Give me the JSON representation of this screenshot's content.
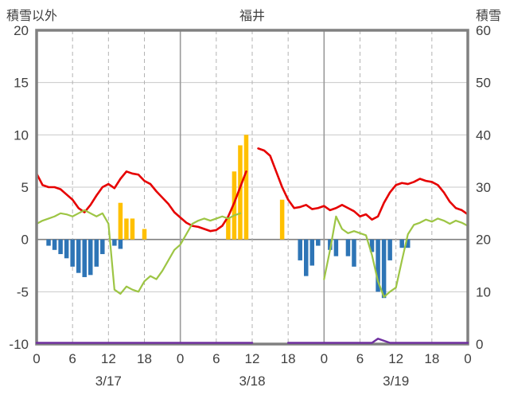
{
  "chart_data": {
    "type": "bar",
    "title": "福井",
    "left_axis": {
      "label": "積雪以外",
      "min": -10,
      "max": 20,
      "ticks": [
        20,
        15,
        10,
        5,
        0,
        -5,
        -10
      ]
    },
    "right_axis": {
      "label": "積雪",
      "min": 0,
      "max": 60,
      "ticks": [
        60,
        50,
        40,
        30,
        20,
        10,
        0
      ]
    },
    "x_axis": {
      "hours_total": 72,
      "tick_interval": 6,
      "tick_labels": [
        "0",
        "6",
        "12",
        "18",
        "0",
        "6",
        "12",
        "18",
        "0",
        "6",
        "12",
        "18",
        "0"
      ],
      "day_labels": [
        {
          "label": "3/17",
          "hour": 12
        },
        {
          "label": "3/18",
          "hour": 36
        },
        {
          "label": "3/19",
          "hour": 60
        }
      ]
    },
    "style": {
      "frame": "#808080",
      "gridline": "#c9c9c9",
      "dashed_line": "#b3b3b3",
      "day_line": "#999999",
      "zero_line": "#808080",
      "text": "#404040",
      "background": "#ffffff"
    },
    "series": [
      {
        "name": "orange-bars",
        "type": "bar",
        "axis": "left",
        "color": "#ffc000",
        "values": [
          null,
          null,
          null,
          null,
          null,
          null,
          null,
          null,
          null,
          null,
          null,
          null,
          null,
          null,
          3.5,
          2,
          2,
          null,
          1,
          null,
          null,
          null,
          null,
          null,
          null,
          null,
          null,
          null,
          null,
          null,
          null,
          null,
          2,
          6.5,
          9,
          10,
          null,
          null,
          null,
          null,
          null,
          3.8,
          null,
          null,
          null,
          null,
          null,
          null,
          null,
          null,
          null,
          null,
          null,
          null,
          null,
          null,
          null,
          null,
          null,
          null,
          null,
          null,
          null,
          null,
          null,
          null,
          null,
          null,
          null,
          null,
          null,
          null,
          null
        ]
      },
      {
        "name": "blue-bars",
        "type": "bar",
        "axis": "left",
        "color": "#2e75b6",
        "values": [
          null,
          null,
          -0.6,
          -1,
          -1.4,
          -1.8,
          -2.6,
          -3.2,
          -3.6,
          -3.4,
          -2.6,
          -1.4,
          null,
          -0.6,
          -0.9,
          null,
          null,
          null,
          null,
          null,
          null,
          null,
          null,
          null,
          null,
          null,
          null,
          null,
          null,
          null,
          null,
          null,
          null,
          null,
          null,
          null,
          null,
          null,
          null,
          null,
          null,
          null,
          null,
          null,
          -2,
          -3.5,
          -2.5,
          -0.6,
          null,
          -1,
          -1.6,
          null,
          -1.6,
          -2.6,
          null,
          null,
          -1.2,
          -5,
          -5.6,
          -2,
          null,
          -0.8,
          -0.8,
          null,
          null,
          null,
          null,
          null,
          null,
          null,
          null,
          null,
          null
        ]
      },
      {
        "name": "red-line",
        "type": "line",
        "axis": "left",
        "color": "#e60000",
        "width": 2.6,
        "values": [
          6.3,
          5.2,
          5,
          5,
          4.8,
          4.3,
          3.8,
          3,
          2.6,
          3.3,
          4.2,
          5,
          5.3,
          4.9,
          5.8,
          6.5,
          6.3,
          6.2,
          5.6,
          5.3,
          4.6,
          4,
          3.4,
          2.6,
          2.1,
          1.6,
          1.3,
          1.2,
          1,
          0.8,
          0.9,
          1.3,
          2.2,
          3.5,
          5,
          6.5,
          null,
          8.7,
          8.5,
          8,
          6.5,
          5,
          3.8,
          3,
          3.1,
          3.3,
          2.9,
          3,
          3.2,
          2.8,
          3,
          3.3,
          3,
          2.7,
          2.2,
          2.4,
          1.9,
          2.2,
          3.5,
          4.5,
          5.2,
          5.4,
          5.3,
          5.5,
          5.8,
          5.6,
          5.5,
          5.2,
          4.5,
          3.6,
          3,
          2.8,
          2.4
        ]
      },
      {
        "name": "green-line",
        "type": "line",
        "axis": "left",
        "color": "#9dc544",
        "width": 2.2,
        "values": [
          1.5,
          1.8,
          2,
          2.2,
          2.5,
          2.4,
          2.2,
          2.5,
          2.8,
          2.5,
          2.2,
          2.5,
          1.5,
          -4.8,
          -5.2,
          -4.5,
          -4.8,
          -5,
          -4,
          -3.5,
          -3.8,
          -3,
          -2,
          -1,
          -0.5,
          0.5,
          1.5,
          1.8,
          2,
          1.8,
          2,
          2.2,
          2,
          2.3,
          2.5,
          null,
          null,
          null,
          null,
          null,
          null,
          null,
          null,
          null,
          null,
          null,
          null,
          null,
          -3.8,
          -1,
          2.2,
          1,
          0.6,
          0.8,
          0.6,
          0.4,
          -1.5,
          -4,
          -5.5,
          -5,
          -4.6,
          -2,
          0.5,
          1.4,
          1.6,
          1.9,
          1.7,
          2,
          1.8,
          1.5,
          1.8,
          1.6,
          1.3
        ]
      },
      {
        "name": "purple-line",
        "type": "line",
        "axis": "right",
        "color": "#7030a0",
        "width": 2.5,
        "values": [
          0,
          0,
          0,
          0,
          0,
          0,
          0,
          0,
          0,
          0,
          0,
          0,
          0,
          0,
          0,
          0,
          0,
          0,
          0,
          0,
          0,
          0,
          0,
          0,
          0,
          0,
          0,
          0,
          0,
          0,
          0,
          0,
          0,
          0,
          0,
          0,
          0,
          null,
          null,
          null,
          null,
          null,
          0,
          0,
          0,
          0,
          0,
          0,
          0,
          0,
          0,
          0,
          0,
          0,
          0,
          0,
          0,
          0.8,
          0.4,
          0,
          0,
          0,
          0,
          0,
          0,
          0,
          0,
          0,
          0,
          0,
          0,
          0,
          0
        ]
      }
    ]
  }
}
